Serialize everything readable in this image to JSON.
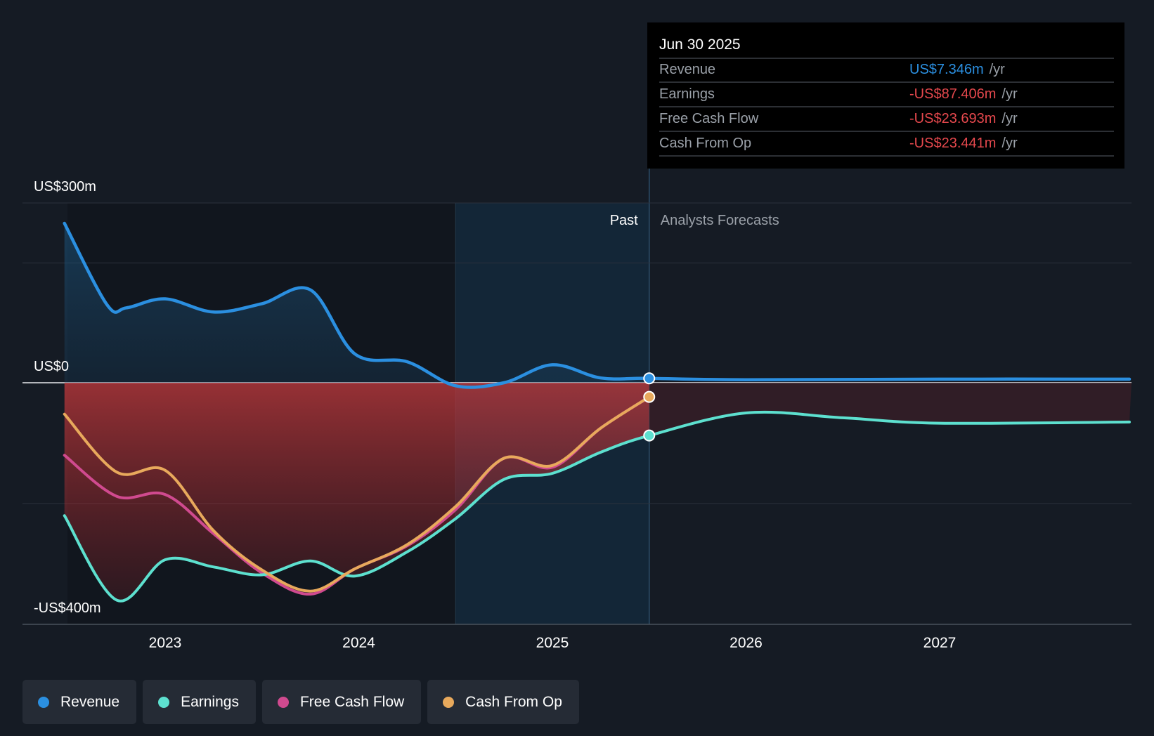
{
  "chart_data": {
    "type": "line",
    "y_axis": {
      "ticks": [
        {
          "value": 300,
          "label": "US$300m"
        },
        {
          "value": 0,
          "label": "US$0"
        },
        {
          "value": -400,
          "label": "-US$400m"
        }
      ],
      "ylim": [
        -400,
        300
      ],
      "gridlines": [
        300,
        200,
        0,
        -200,
        -400
      ]
    },
    "x_axis": {
      "ticks": [
        {
          "value": 2023,
          "label": "2023"
        },
        {
          "value": 2024,
          "label": "2024"
        },
        {
          "value": 2025,
          "label": "2025"
        },
        {
          "value": 2026,
          "label": "2026"
        },
        {
          "value": 2027,
          "label": "2027"
        }
      ],
      "xlim": [
        2022.25,
        2027.98
      ]
    },
    "regions": {
      "past_label": "Past",
      "forecast_label": "Analysts Forecasts",
      "past_start": 2024.5,
      "past_end": 2025.5
    },
    "series": [
      {
        "name": "Revenue",
        "color": "#2b8fe0",
        "points": [
          [
            2022.48,
            266
          ],
          [
            2022.7,
            130
          ],
          [
            2022.8,
            125
          ],
          [
            2023.0,
            140
          ],
          [
            2023.25,
            118
          ],
          [
            2023.5,
            132
          ],
          [
            2023.75,
            155
          ],
          [
            2023.98,
            48
          ],
          [
            2024.25,
            35
          ],
          [
            2024.5,
            -5
          ],
          [
            2024.75,
            0
          ],
          [
            2025.0,
            30
          ],
          [
            2025.25,
            8
          ],
          [
            2025.5,
            7.346
          ],
          [
            2026.0,
            5
          ],
          [
            2027.0,
            6
          ],
          [
            2027.98,
            6
          ]
        ]
      },
      {
        "name": "Earnings",
        "color": "#5de0cf",
        "points": [
          [
            2022.48,
            -220
          ],
          [
            2022.75,
            -360
          ],
          [
            2023.0,
            -293
          ],
          [
            2023.25,
            -305
          ],
          [
            2023.5,
            -318
          ],
          [
            2023.75,
            -295
          ],
          [
            2023.98,
            -320
          ],
          [
            2024.25,
            -280
          ],
          [
            2024.5,
            -225
          ],
          [
            2024.75,
            -160
          ],
          [
            2025.0,
            -150
          ],
          [
            2025.25,
            -115
          ],
          [
            2025.5,
            -87.406
          ],
          [
            2026.0,
            -50
          ],
          [
            2026.5,
            -58
          ],
          [
            2027.0,
            -67
          ],
          [
            2027.98,
            -65
          ]
        ]
      },
      {
        "name": "Free Cash Flow",
        "color": "#d04a8f",
        "points": [
          [
            2022.48,
            -120
          ],
          [
            2022.75,
            -188
          ],
          [
            2023.0,
            -185
          ],
          [
            2023.25,
            -250
          ],
          [
            2023.5,
            -315
          ],
          [
            2023.75,
            -350
          ],
          [
            2023.98,
            -308
          ],
          [
            2024.25,
            -270
          ],
          [
            2024.5,
            -210
          ],
          [
            2024.75,
            -125
          ],
          [
            2025.0,
            -140
          ],
          [
            2025.25,
            -75
          ],
          [
            2025.5,
            -23.693
          ]
        ]
      },
      {
        "name": "Cash From Op",
        "color": "#e8a95c",
        "points": [
          [
            2022.48,
            -52
          ],
          [
            2022.75,
            -148
          ],
          [
            2023.0,
            -145
          ],
          [
            2023.25,
            -245
          ],
          [
            2023.5,
            -310
          ],
          [
            2023.75,
            -345
          ],
          [
            2023.98,
            -308
          ],
          [
            2024.25,
            -268
          ],
          [
            2024.5,
            -205
          ],
          [
            2024.75,
            -125
          ],
          [
            2025.0,
            -137
          ],
          [
            2025.25,
            -75
          ],
          [
            2025.5,
            -23.441
          ]
        ]
      }
    ],
    "tooltip": {
      "date": "Jun 30 2025",
      "rows": [
        {
          "label": "Revenue",
          "value": "US$7.346m",
          "unit": "/yr",
          "color": "#2b8fe0"
        },
        {
          "label": "Earnings",
          "value": "-US$87.406m",
          "unit": "/yr",
          "color": "#e5484d"
        },
        {
          "label": "Free Cash Flow",
          "value": "-US$23.693m",
          "unit": "/yr",
          "color": "#e5484d"
        },
        {
          "label": "Cash From Op",
          "value": "-US$23.441m",
          "unit": "/yr",
          "color": "#e5484d"
        }
      ]
    }
  },
  "legend": [
    {
      "label": "Revenue",
      "color": "#2b8fe0"
    },
    {
      "label": "Earnings",
      "color": "#5de0cf"
    },
    {
      "label": "Free Cash Flow",
      "color": "#d04a8f"
    },
    {
      "label": "Cash From Op",
      "color": "#e8a95c"
    }
  ]
}
